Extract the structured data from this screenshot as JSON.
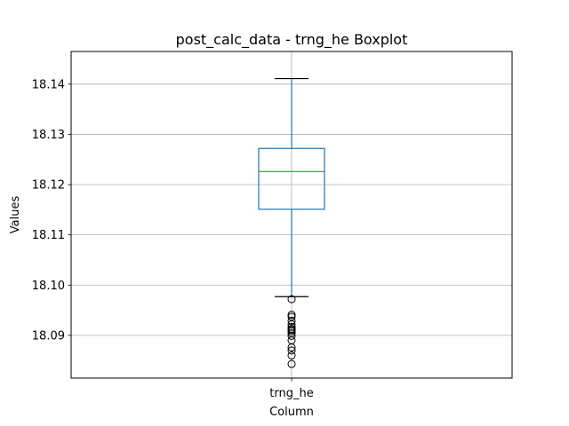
{
  "chart_data": {
    "type": "boxplot",
    "title": "post_calc_data - trng_he Boxplot",
    "xlabel": "Column",
    "ylabel": "Values",
    "categories": [
      "trng_he"
    ],
    "ylim": [
      18.0815,
      18.1465
    ],
    "yticks": [
      18.09,
      18.1,
      18.11,
      18.12,
      18.13,
      18.14
    ],
    "ytick_labels": [
      "18.09",
      "18.10",
      "18.11",
      "18.12",
      "18.13",
      "18.14"
    ],
    "grid": true,
    "series": [
      {
        "name": "trng_he",
        "whisker_low": 18.0977,
        "q1": 18.1151,
        "median": 18.1226,
        "q3": 18.1272,
        "whisker_high": 18.1411,
        "outliers": [
          18.0972,
          18.0941,
          18.0937,
          18.0929,
          18.0922,
          18.0917,
          18.0913,
          18.0911,
          18.0908,
          18.0904,
          18.0899,
          18.089,
          18.0876,
          18.087,
          18.086,
          18.0843
        ]
      }
    ],
    "colors": {
      "box": "#1f77b4",
      "median": "#2ca02c",
      "whisker": "#1f77b4",
      "cap": "#000000",
      "outlier": "#000000",
      "grid": "#b0b0b0",
      "axis": "#000000"
    }
  }
}
